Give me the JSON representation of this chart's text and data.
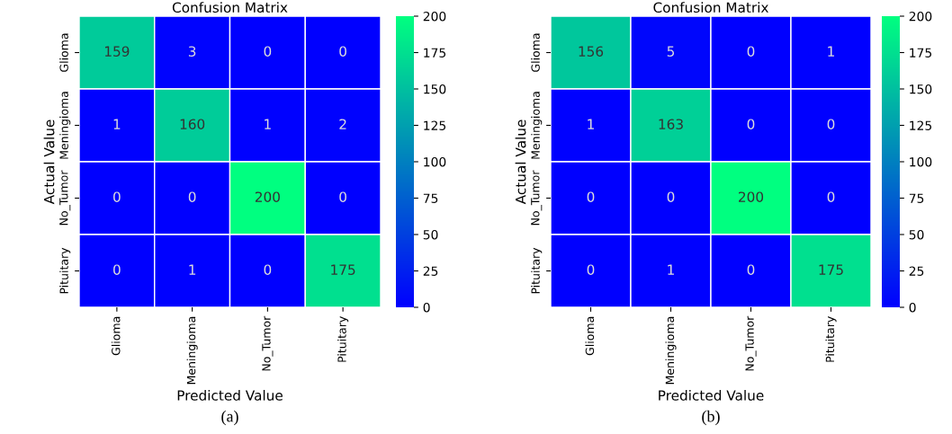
{
  "chart_data": [
    {
      "type": "heatmap",
      "title": "Confusion Matrix",
      "xlabel": "Predicted Value",
      "ylabel": "Actual Value",
      "categories": [
        "Glioma",
        "Meningioma",
        "No_Tumor",
        "Pituitary"
      ],
      "y_categories": [
        "Glioma",
        "Meningioma",
        "No_Tumor",
        "Pituitary"
      ],
      "cells": [
        [
          159,
          3,
          0,
          0
        ],
        [
          1,
          160,
          1,
          2
        ],
        [
          0,
          0,
          200,
          0
        ],
        [
          0,
          1,
          0,
          175
        ]
      ],
      "data_labels": true,
      "colors": [
        "#0000ff",
        "#00ff80"
      ],
      "clim": [
        0,
        200
      ],
      "cticks": [
        0,
        25,
        50,
        75,
        100,
        125,
        150,
        175,
        200
      ],
      "annotations": [
        "(a)"
      ]
    },
    {
      "type": "heatmap",
      "title": "Confusion Matrix",
      "xlabel": "Predicted Value",
      "ylabel": "Actual Value",
      "categories": [
        "Glioma",
        "Meningioma",
        "No_Tumor",
        "Pituitary"
      ],
      "y_categories": [
        "Glioma",
        "Meningioma",
        "No_Tumor",
        "Pituitary"
      ],
      "cells": [
        [
          156,
          5,
          0,
          1
        ],
        [
          1,
          163,
          0,
          0
        ],
        [
          0,
          0,
          200,
          0
        ],
        [
          0,
          1,
          0,
          175
        ]
      ],
      "data_labels": true,
      "colors": [
        "#0000ff",
        "#00ff80"
      ],
      "clim": [
        0,
        200
      ],
      "cticks": [
        0,
        25,
        50,
        75,
        100,
        125,
        150,
        175,
        200
      ],
      "annotations": [
        "(b)"
      ]
    }
  ]
}
